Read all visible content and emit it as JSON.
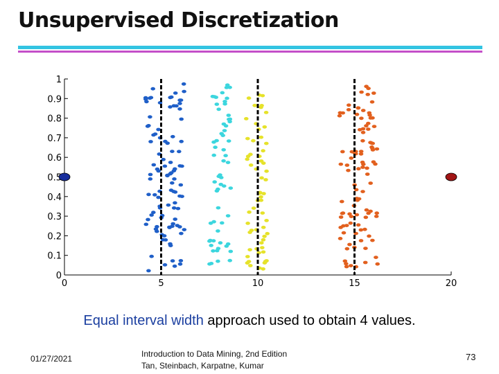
{
  "slide": {
    "title": "Unsupervised Discretization",
    "caption_highlight": "Equal interval width",
    "caption_rest": " approach used to obtain 4 values.",
    "colors": {
      "rule_top": "#33c4e2",
      "rule_bottom": "#c34fc9",
      "caption_highlight": "#1b3fa0"
    }
  },
  "footer": {
    "date": "01/27/2021",
    "line1": "Introduction to Data Mining, 2nd Edition",
    "line2": "Tan, Steinbach, Karpatne, Kumar",
    "page": "73"
  },
  "chart_data": {
    "type": "scatter",
    "title": "",
    "xlabel": "",
    "ylabel": "",
    "xlim": [
      0,
      20
    ],
    "ylim": [
      0,
      1
    ],
    "xticks": [
      "0",
      "5",
      "10",
      "15",
      "20"
    ],
    "yticks": [
      "0",
      "0.1",
      "0.2",
      "0.3",
      "0.4",
      "0.5",
      "0.6",
      "0.7",
      "0.8",
      "0.9",
      "1"
    ],
    "grid": false,
    "cut_points": [
      5,
      10,
      15
    ],
    "clusters": [
      {
        "color": "#1f5fc8",
        "x_range": [
          4.2,
          6.2
        ],
        "y_range": [
          0.02,
          0.98
        ],
        "n_points": 100
      },
      {
        "color": "#3cd6de",
        "x_range": [
          7.5,
          8.6
        ],
        "y_range": [
          0.05,
          0.98
        ],
        "n_points": 60
      },
      {
        "color": "#e6e22a",
        "x_range": [
          9.4,
          10.5
        ],
        "y_range": [
          0.02,
          0.95
        ],
        "n_points": 60
      },
      {
        "color": "#e2601e",
        "x_range": [
          14.2,
          16.2
        ],
        "y_range": [
          0.02,
          0.98
        ],
        "n_points": 100
      }
    ],
    "outliers": [
      {
        "x": 0,
        "y": 0.5,
        "color": "#172e9c"
      },
      {
        "x": 20,
        "y": 0.5,
        "color": "#a11515"
      }
    ]
  }
}
